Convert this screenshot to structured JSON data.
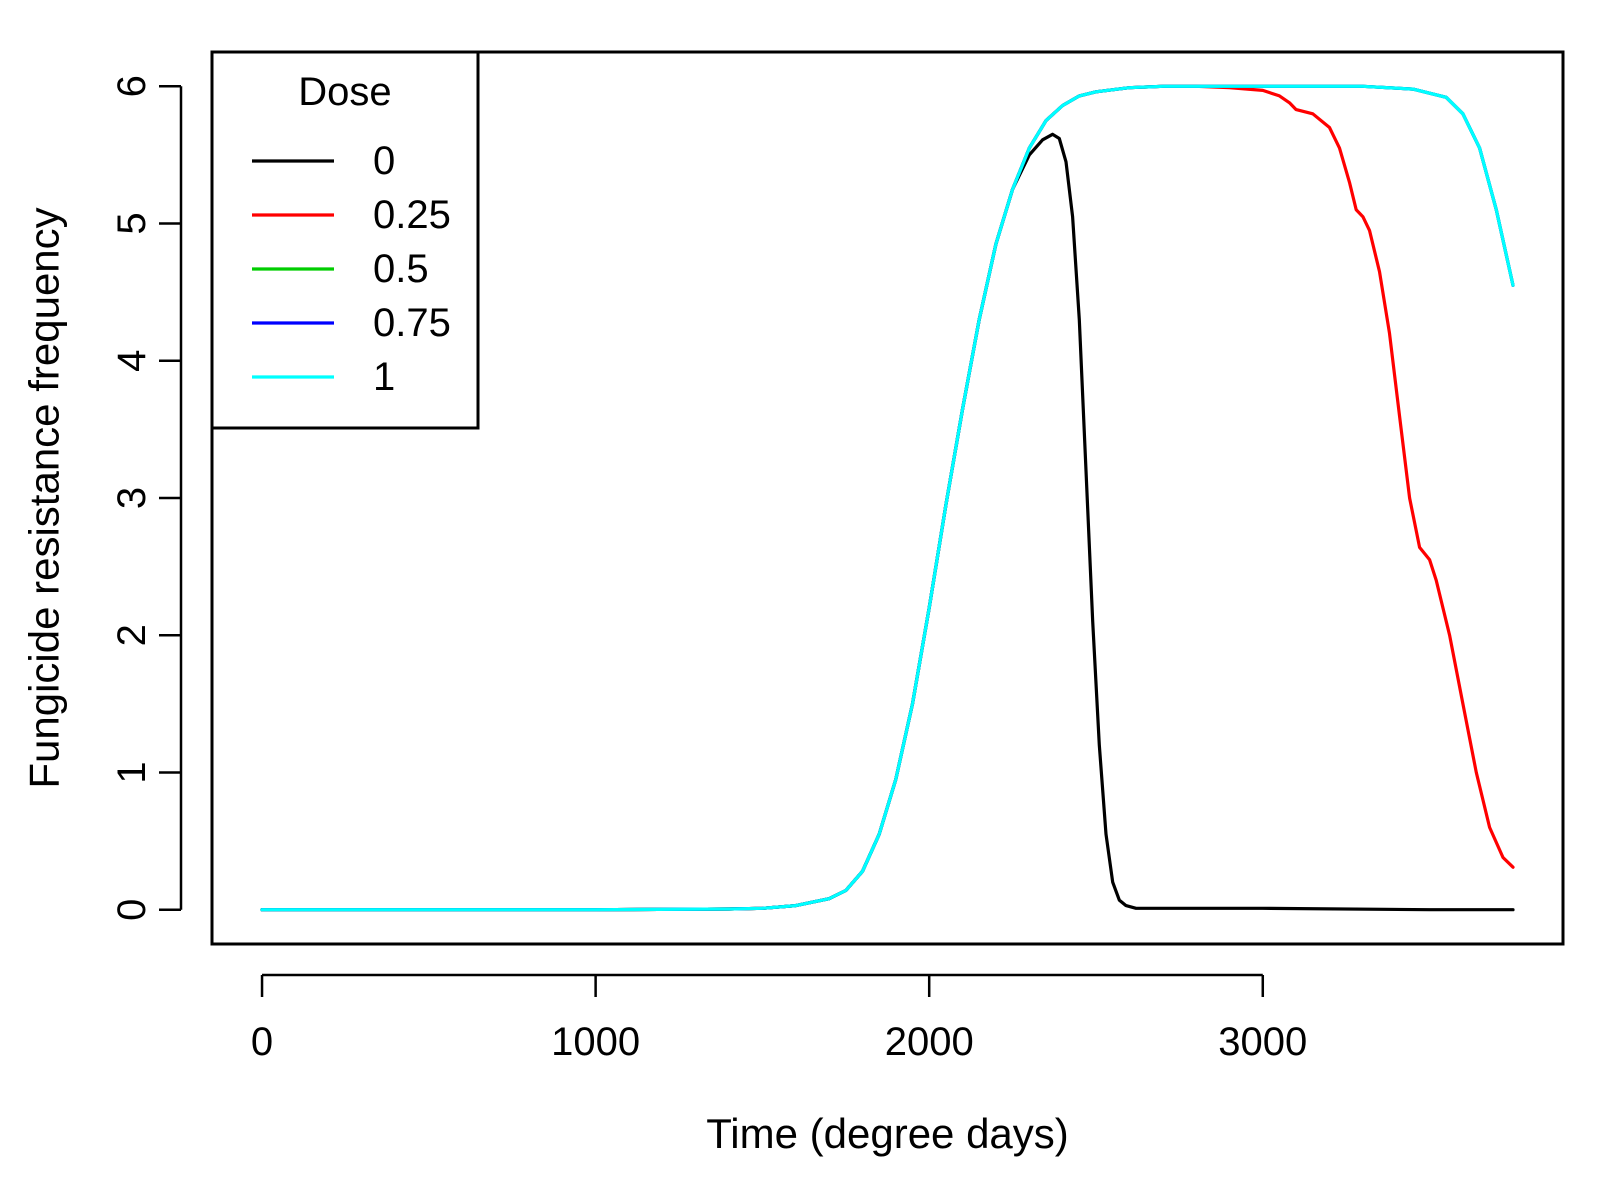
{
  "chart_data": {
    "type": "line",
    "xlabel": "Time (degree days)",
    "ylabel": "Fungicide resistance frequency",
    "xlim": [
      -150,
      3900
    ],
    "ylim": [
      -0.25,
      6.25
    ],
    "xticks": [
      0,
      1000,
      2000,
      3000
    ],
    "yticks": [
      0,
      1,
      2,
      3,
      4,
      5,
      6
    ],
    "grid": false,
    "legend": {
      "title": "Dose",
      "position": "top-left"
    },
    "series": [
      {
        "name": "0",
        "color": "#000000",
        "x": [
          0,
          500,
          1000,
          1400,
          1500,
          1600,
          1700,
          1750,
          1800,
          1850,
          1900,
          1950,
          2000,
          2050,
          2100,
          2150,
          2200,
          2250,
          2300,
          2340,
          2370,
          2390,
          2410,
          2430,
          2450,
          2470,
          2490,
          2510,
          2530,
          2550,
          2570,
          2590,
          2620,
          2700,
          3000,
          3500,
          3750
        ],
        "y": [
          0,
          0,
          0,
          0.005,
          0.01,
          0.03,
          0.08,
          0.14,
          0.28,
          0.55,
          0.95,
          1.5,
          2.2,
          2.95,
          3.65,
          4.3,
          4.85,
          5.25,
          5.5,
          5.61,
          5.65,
          5.62,
          5.45,
          5.05,
          4.3,
          3.2,
          2.1,
          1.2,
          0.55,
          0.2,
          0.07,
          0.03,
          0.01,
          0.01,
          0.01,
          0,
          0
        ]
      },
      {
        "name": "0.25",
        "color": "#ff0000",
        "x": [
          0,
          500,
          1000,
          1400,
          1500,
          1600,
          1700,
          1750,
          1800,
          1850,
          1900,
          1950,
          2000,
          2050,
          2100,
          2150,
          2200,
          2250,
          2300,
          2350,
          2400,
          2450,
          2500,
          2600,
          2700,
          2800,
          2900,
          3000,
          3050,
          3080,
          3100,
          3150,
          3200,
          3230,
          3260,
          3280,
          3300,
          3320,
          3350,
          3380,
          3410,
          3440,
          3470,
          3500,
          3520,
          3560,
          3600,
          3640,
          3680,
          3720,
          3750
        ],
        "y": [
          0,
          0,
          0,
          0.005,
          0.01,
          0.03,
          0.08,
          0.14,
          0.28,
          0.55,
          0.95,
          1.5,
          2.2,
          2.95,
          3.65,
          4.3,
          4.85,
          5.25,
          5.55,
          5.75,
          5.86,
          5.93,
          5.96,
          5.99,
          6.0,
          6.0,
          5.99,
          5.97,
          5.93,
          5.88,
          5.83,
          5.8,
          5.7,
          5.55,
          5.3,
          5.1,
          5.05,
          4.95,
          4.65,
          4.2,
          3.6,
          3.0,
          2.64,
          2.55,
          2.4,
          2.0,
          1.5,
          1.0,
          0.6,
          0.38,
          0.31
        ]
      },
      {
        "name": "0.5",
        "color": "#00cd00",
        "x": [
          0,
          500,
          1000,
          1400,
          1500,
          1600,
          1700,
          1750,
          1800,
          1850,
          1900,
          1950,
          2000,
          2050,
          2100,
          2150,
          2200,
          2250,
          2300,
          2350,
          2400,
          2450,
          2500,
          2600,
          2700,
          3000,
          3300,
          3450,
          3550,
          3600,
          3650,
          3700,
          3750
        ],
        "y": [
          0,
          0,
          0,
          0.005,
          0.01,
          0.03,
          0.08,
          0.14,
          0.28,
          0.55,
          0.95,
          1.5,
          2.2,
          2.95,
          3.65,
          4.3,
          4.85,
          5.25,
          5.55,
          5.75,
          5.86,
          5.93,
          5.96,
          5.99,
          6.0,
          6.0,
          6.0,
          5.98,
          5.92,
          5.8,
          5.55,
          5.1,
          4.55
        ]
      },
      {
        "name": "0.75",
        "color": "#0000ff",
        "x": [
          0,
          500,
          1000,
          1400,
          1500,
          1600,
          1700,
          1750,
          1800,
          1850,
          1900,
          1950,
          2000,
          2050,
          2100,
          2150,
          2200,
          2250,
          2300,
          2350,
          2400,
          2450,
          2500,
          2600,
          2700,
          3000,
          3300,
          3450,
          3550,
          3600,
          3650,
          3700,
          3750
        ],
        "y": [
          0,
          0,
          0,
          0.005,
          0.01,
          0.03,
          0.08,
          0.14,
          0.28,
          0.55,
          0.95,
          1.5,
          2.2,
          2.95,
          3.65,
          4.3,
          4.85,
          5.25,
          5.55,
          5.75,
          5.86,
          5.93,
          5.96,
          5.99,
          6.0,
          6.0,
          6.0,
          5.98,
          5.92,
          5.8,
          5.55,
          5.1,
          4.55
        ]
      },
      {
        "name": "1",
        "color": "#00ffff",
        "x": [
          0,
          500,
          1000,
          1400,
          1500,
          1600,
          1700,
          1750,
          1800,
          1850,
          1900,
          1950,
          2000,
          2050,
          2100,
          2150,
          2200,
          2250,
          2300,
          2350,
          2400,
          2450,
          2500,
          2600,
          2700,
          3000,
          3300,
          3450,
          3550,
          3600,
          3650,
          3700,
          3750
        ],
        "y": [
          0,
          0,
          0,
          0.005,
          0.01,
          0.03,
          0.08,
          0.14,
          0.28,
          0.55,
          0.95,
          1.5,
          2.2,
          2.95,
          3.65,
          4.3,
          4.85,
          5.25,
          5.55,
          5.75,
          5.86,
          5.93,
          5.96,
          5.99,
          6.0,
          6.0,
          6.0,
          5.98,
          5.92,
          5.8,
          5.55,
          5.1,
          4.55
        ]
      }
    ]
  }
}
